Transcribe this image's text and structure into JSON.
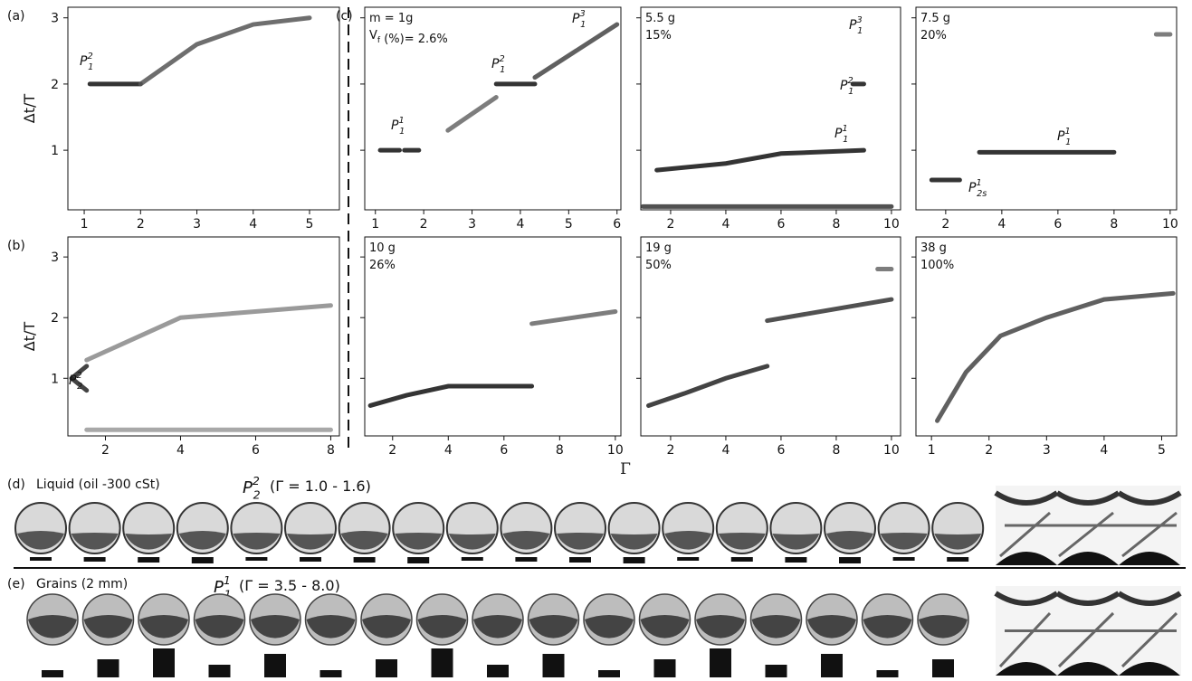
{
  "chart_data": [
    {
      "type": "line",
      "panel_label": "(a)",
      "ylabel": "Δt/T",
      "xlim": [
        0.71,
        5.53
      ],
      "ylim": [
        0.1,
        3.16
      ],
      "xticks": [
        1,
        2,
        3,
        4,
        5
      ],
      "yticks": [
        1,
        2,
        3
      ],
      "ytick_labels": true,
      "annotations": [
        {
          "base": "P",
          "sub": "1",
          "sup": "2"
        }
      ],
      "series": [
        {
          "color": "#111",
          "x": [
            1.1,
            2.0
          ],
          "values": [
            2,
            2
          ]
        },
        {
          "color": "#555",
          "x": [
            2.0,
            3.0,
            4.0,
            5.0
          ],
          "values": [
            2.0,
            2.6,
            2.9,
            3.0
          ]
        }
      ]
    },
    {
      "type": "line",
      "panel_label": "(b)",
      "ylabel": "Δt/T",
      "xlim": [
        1.0,
        8.23
      ],
      "ylim": [
        0.05,
        3.33
      ],
      "xticks": [
        2,
        4,
        6,
        8
      ],
      "yticks": [
        1,
        2,
        3
      ],
      "ytick_labels": true,
      "annotations": [
        {
          "base": "P",
          "sub": "2",
          "sup": "2"
        }
      ],
      "series": [
        {
          "color": "#222",
          "x": [
            1.1,
            1.5
          ],
          "values": [
            1.0,
            1.2
          ]
        },
        {
          "color": "#222",
          "x": [
            1.1,
            1.5
          ],
          "values": [
            1.0,
            0.8
          ]
        },
        {
          "color": "#888",
          "x": [
            1.5,
            4,
            8
          ],
          "values": [
            1.3,
            2.0,
            2.2
          ]
        },
        {
          "color": "#999",
          "x": [
            1.5,
            8
          ],
          "values": [
            0.15,
            0.15
          ]
        }
      ]
    },
    {
      "type": "line",
      "panel_label": "(c)",
      "info": [
        [
          "m = 1g"
        ],
        [
          "V",
          {
            "sub": "f"
          },
          " (%)= 2.6%"
        ]
      ],
      "xlim": [
        0.78,
        6.08
      ],
      "ylim": [
        0.1,
        3.16
      ],
      "xticks": [
        1,
        2,
        3,
        4,
        5,
        6
      ],
      "yticks": [
        1,
        2,
        3
      ],
      "ytick_labels": false,
      "annotations": [
        {
          "base": "P",
          "sub": "1",
          "sup": "1"
        },
        {
          "base": "P",
          "sub": "1",
          "sup": "2"
        },
        {
          "base": "P",
          "sub": "1",
          "sup": "3"
        }
      ],
      "series": [
        {
          "color": "#111",
          "x": [
            1.1,
            1.5
          ],
          "values": [
            1,
            1
          ]
        },
        {
          "color": "#111",
          "x": [
            1.6,
            1.9
          ],
          "values": [
            1,
            1
          ]
        },
        {
          "color": "#666",
          "x": [
            2.5,
            3.5
          ],
          "values": [
            1.3,
            1.8
          ]
        },
        {
          "color": "#111",
          "x": [
            3.5,
            4.3
          ],
          "values": [
            2,
            2
          ]
        },
        {
          "color": "#444",
          "x": [
            4.3,
            6.0
          ],
          "values": [
            2.1,
            2.9
          ]
        }
      ]
    },
    {
      "type": "line",
      "info": [
        [
          "5.5 g"
        ],
        [
          "15%"
        ]
      ],
      "xlim": [
        0.92,
        10.33
      ],
      "ylim": [
        0.1,
        3.16
      ],
      "xticks": [
        2,
        4,
        6,
        8,
        10
      ],
      "yticks": [
        1,
        2,
        3
      ],
      "ytick_labels": false,
      "annotations": [
        {
          "base": "P",
          "sub": "1",
          "sup": "3"
        },
        {
          "base": "P",
          "sub": "1",
          "sup": "2"
        },
        {
          "base": "P",
          "sub": "1",
          "sup": "1"
        }
      ],
      "series": [
        {
          "color": "#111",
          "x": [
            1.5,
            4.0,
            6.0,
            9.0
          ],
          "values": [
            0.7,
            0.8,
            0.95,
            1.0
          ]
        },
        {
          "color": "#111",
          "x": [
            8.6,
            9.0
          ],
          "values": [
            2,
            2
          ]
        },
        {
          "color": "#333",
          "x": [
            1,
            10
          ],
          "values": [
            0.15,
            0.15
          ]
        }
      ]
    },
    {
      "type": "line",
      "info": [
        [
          "7.5 g"
        ],
        [
          "20%"
        ]
      ],
      "xlim": [
        0.94,
        10.23
      ],
      "ylim": [
        0.1,
        3.16
      ],
      "xticks": [
        2,
        4,
        6,
        8,
        10
      ],
      "yticks": [
        1,
        2,
        3
      ],
      "ytick_labels": false,
      "annotations": [
        {
          "base": "P",
          "sub": "1",
          "sup": "1"
        },
        {
          "base": "P",
          "sub": "2s",
          "sup": "1"
        }
      ],
      "series": [
        {
          "color": "#111",
          "x": [
            1.5,
            2.5
          ],
          "values": [
            0.55,
            0.55
          ]
        },
        {
          "color": "#111",
          "x": [
            3.2,
            8.0
          ],
          "values": [
            0.97,
            0.97
          ]
        },
        {
          "color": "#666",
          "x": [
            9.5,
            10
          ],
          "values": [
            2.75,
            2.75
          ]
        }
      ]
    },
    {
      "type": "line",
      "info": [
        [
          "10 g"
        ],
        [
          "26%"
        ]
      ],
      "xlim": [
        1.0,
        10.2
      ],
      "ylim": [
        0.05,
        3.33
      ],
      "xticks": [
        2,
        4,
        6,
        8,
        10
      ],
      "yticks": [
        1,
        2,
        3
      ],
      "ytick_labels": false,
      "annotations": [],
      "series": [
        {
          "color": "#111",
          "x": [
            1.2,
            2.5,
            4,
            7
          ],
          "values": [
            0.55,
            0.72,
            0.87,
            0.87
          ]
        },
        {
          "color": "#666",
          "x": [
            7,
            10
          ],
          "values": [
            1.9,
            2.1
          ]
        }
      ]
    },
    {
      "type": "line",
      "info": [
        [
          "19 g"
        ],
        [
          "50%"
        ]
      ],
      "xlim": [
        0.92,
        10.33
      ],
      "ylim": [
        0.05,
        3.33
      ],
      "xticks": [
        2,
        4,
        6,
        8,
        10
      ],
      "yticks": [
        1,
        2,
        3
      ],
      "ytick_labels": false,
      "annotations": [],
      "series": [
        {
          "color": "#222",
          "x": [
            1.2,
            2.5,
            4,
            5.5
          ],
          "values": [
            0.55,
            0.75,
            1.0,
            1.2
          ]
        },
        {
          "color": "#333",
          "x": [
            5.5,
            10
          ],
          "values": [
            1.95,
            2.3
          ]
        },
        {
          "color": "#666",
          "x": [
            9.5,
            10
          ],
          "values": [
            2.8,
            2.8
          ]
        }
      ]
    },
    {
      "type": "line",
      "info": [
        [
          "38 g"
        ],
        [
          "100%"
        ]
      ],
      "xlim": [
        0.73,
        5.26
      ],
      "ylim": [
        0.05,
        3.33
      ],
      "xticks": [
        1,
        2,
        3,
        4,
        5
      ],
      "yticks": [
        1,
        2,
        3
      ],
      "ytick_labels": false,
      "annotations": [],
      "series": [
        {
          "color": "#444",
          "x": [
            1.1,
            1.6,
            2.2,
            3,
            4,
            5.2
          ],
          "values": [
            0.3,
            1.1,
            1.7,
            2.0,
            2.3,
            2.4
          ]
        }
      ]
    }
  ],
  "shared_x_label": "Γ",
  "strip_d": {
    "panel_label": "(d)",
    "title": "Liquid (oil -300 cSt)",
    "formula": {
      "base": "P",
      "sub": "2",
      "sup": "2"
    },
    "range": "(Γ = 1.0 - 1.6)"
  },
  "strip_e": {
    "panel_label": "(e)",
    "title": "Grains (2 mm)",
    "formula": {
      "base": "P",
      "sub": "1",
      "sup": "1"
    },
    "range": "(Γ = 3.5 - 8.0)"
  }
}
